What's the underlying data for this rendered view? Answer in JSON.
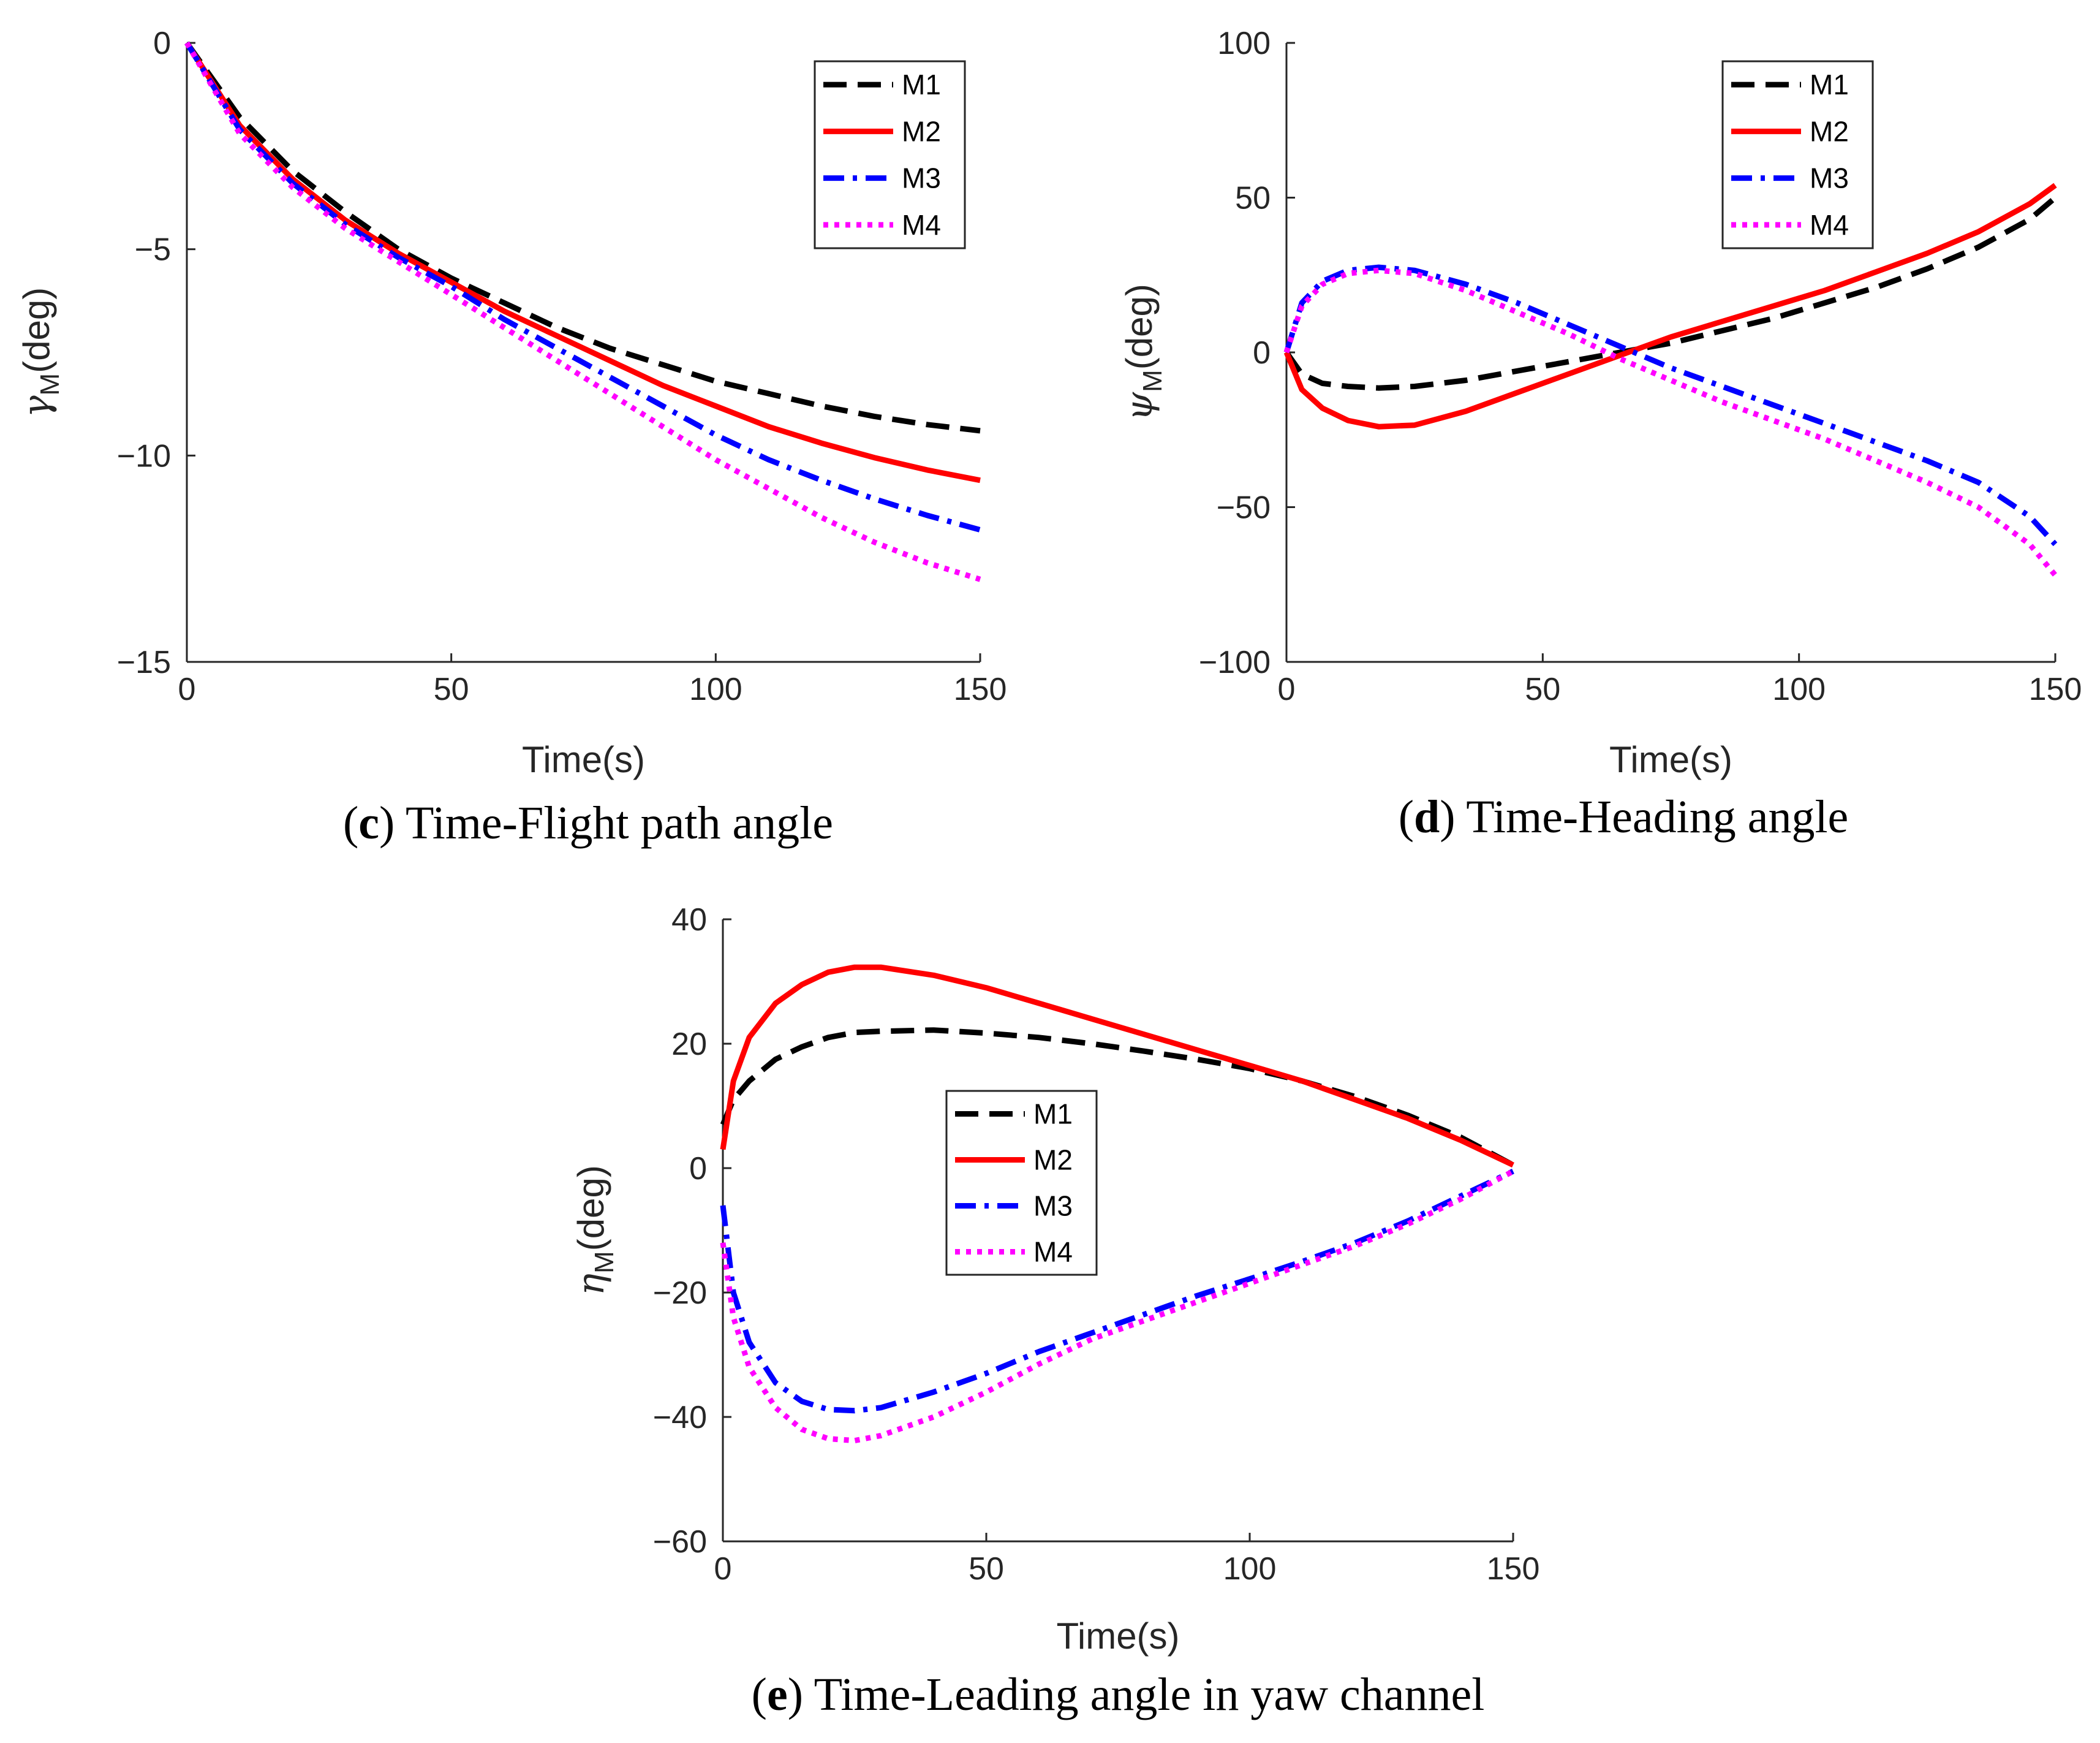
{
  "chart_data": [
    {
      "type": "line",
      "panel": "c",
      "caption_letter": "c",
      "caption_text": "Time-Flight path angle",
      "xlabel": "Time(s)",
      "ylabel_symbol": "γ",
      "ylabel_sub": "M",
      "ylabel_unit": "(deg)",
      "xlim": [
        0,
        150
      ],
      "ylim": [
        -15,
        0
      ],
      "xticks": [
        0,
        50,
        100,
        150
      ],
      "yticks": [
        0,
        -5,
        -10,
        -15
      ],
      "xtick_labels": [
        "0",
        "50",
        "100",
        "150"
      ],
      "ytick_labels": [
        "0",
        "−5",
        "−10",
        "−15"
      ],
      "legend_position": "top-right",
      "x": [
        0,
        10,
        20,
        30,
        40,
        50,
        60,
        70,
        80,
        90,
        100,
        110,
        120,
        130,
        140,
        150
      ],
      "series": [
        {
          "name": "M1",
          "values": [
            0,
            -1.8,
            -3.1,
            -4.1,
            -5.0,
            -5.7,
            -6.3,
            -6.9,
            -7.4,
            -7.8,
            -8.2,
            -8.5,
            -8.8,
            -9.05,
            -9.25,
            -9.4
          ]
        },
        {
          "name": "M2",
          "values": [
            0,
            -2.0,
            -3.3,
            -4.3,
            -5.1,
            -5.8,
            -6.5,
            -7.1,
            -7.7,
            -8.3,
            -8.8,
            -9.3,
            -9.7,
            -10.05,
            -10.35,
            -10.6
          ]
        },
        {
          "name": "M3",
          "values": [
            0,
            -2.1,
            -3.4,
            -4.4,
            -5.2,
            -5.9,
            -6.7,
            -7.4,
            -8.1,
            -8.8,
            -9.5,
            -10.1,
            -10.6,
            -11.05,
            -11.45,
            -11.8
          ]
        },
        {
          "name": "M4",
          "values": [
            0,
            -2.2,
            -3.5,
            -4.5,
            -5.3,
            -6.1,
            -6.9,
            -7.7,
            -8.5,
            -9.3,
            -10.1,
            -10.8,
            -11.5,
            -12.1,
            -12.6,
            -13.0
          ]
        }
      ]
    },
    {
      "type": "line",
      "panel": "d",
      "caption_letter": "d",
      "caption_text": "Time-Heading angle",
      "xlabel": "Time(s)",
      "ylabel_symbol": "ψ",
      "ylabel_sub": "M",
      "ylabel_unit": "(deg)",
      "xlim": [
        0,
        150
      ],
      "ylim": [
        -100,
        100
      ],
      "xticks": [
        0,
        50,
        100,
        150
      ],
      "yticks": [
        100,
        50,
        0,
        -50,
        -100
      ],
      "xtick_labels": [
        "0",
        "50",
        "100",
        "150"
      ],
      "ytick_labels": [
        "100",
        "50",
        "0",
        "−50",
        "−100"
      ],
      "legend_position": "top-right",
      "x": [
        0,
        3,
        7,
        12,
        18,
        25,
        35,
        45,
        55,
        65,
        75,
        85,
        95,
        105,
        115,
        125,
        135,
        145,
        150
      ],
      "series": [
        {
          "name": "M1",
          "values": [
            0,
            -7,
            -10,
            -11,
            -11.5,
            -11,
            -9,
            -6,
            -3,
            0,
            3,
            7,
            11,
            16,
            21,
            27,
            34,
            43,
            50
          ]
        },
        {
          "name": "M2",
          "values": [
            0,
            -12,
            -18,
            -22,
            -24,
            -23.5,
            -19,
            -13,
            -7,
            -1,
            5,
            10,
            15,
            20,
            26,
            32,
            39,
            48,
            54
          ]
        },
        {
          "name": "M3",
          "values": [
            0,
            16,
            23,
            26.5,
            27.5,
            26.5,
            22,
            16,
            9,
            2,
            -5,
            -11,
            -17,
            -23,
            -29,
            -35,
            -42,
            -53,
            -62
          ]
        },
        {
          "name": "M4",
          "values": [
            0,
            15,
            22,
            25.5,
            26.5,
            25.5,
            20,
            13,
            6,
            -2,
            -9,
            -16,
            -22,
            -28,
            -35,
            -42,
            -50,
            -62,
            -72
          ]
        }
      ]
    },
    {
      "type": "line",
      "panel": "e",
      "caption_letter": "e",
      "caption_text": "Time-Leading angle in yaw channel",
      "xlabel": "Time(s)",
      "ylabel_symbol": "η",
      "ylabel_sub": "M",
      "ylabel_unit": "(deg)",
      "xlim": [
        0,
        150
      ],
      "ylim": [
        -60,
        40
      ],
      "xticks": [
        0,
        50,
        100,
        150
      ],
      "yticks": [
        40,
        20,
        0,
        -20,
        -40,
        -60
      ],
      "xtick_labels": [
        "0",
        "50",
        "100",
        "150"
      ],
      "ytick_labels": [
        "40",
        "20",
        "0",
        "−20",
        "−40",
        "−60"
      ],
      "legend_position": "center",
      "x": [
        0,
        2,
        5,
        10,
        15,
        20,
        25,
        30,
        40,
        50,
        60,
        70,
        80,
        90,
        100,
        110,
        120,
        130,
        140,
        150
      ],
      "series": [
        {
          "name": "M1",
          "values": [
            7,
            11,
            14,
            17.5,
            19.5,
            21,
            21.8,
            22,
            22.2,
            21.7,
            21,
            20,
            18.8,
            17.5,
            16,
            14,
            11.5,
            8.5,
            5,
            0.5
          ]
        },
        {
          "name": "M2",
          "values": [
            3,
            14,
            21,
            26.5,
            29.5,
            31.5,
            32.3,
            32.3,
            31,
            29,
            26.5,
            24,
            21.5,
            19,
            16.5,
            14,
            11,
            8,
            4.5,
            0.5
          ]
        },
        {
          "name": "M3",
          "values": [
            -6,
            -20,
            -28,
            -34.5,
            -37.5,
            -38.8,
            -39,
            -38.5,
            -36,
            -33,
            -29.5,
            -26.5,
            -23.5,
            -20.5,
            -17.8,
            -15,
            -12,
            -8.5,
            -4.5,
            -0.5
          ]
        },
        {
          "name": "M4",
          "values": [
            -12,
            -24,
            -32,
            -38.5,
            -42,
            -43.5,
            -43.8,
            -43,
            -40,
            -36,
            -31.5,
            -27.5,
            -24.5,
            -21.5,
            -18.5,
            -15.5,
            -12.5,
            -9,
            -5,
            -0.5
          ]
        }
      ]
    }
  ],
  "legend_styles": [
    {
      "name": "M1",
      "color": "#000000",
      "dash": "dash"
    },
    {
      "name": "M2",
      "color": "#ff0000",
      "dash": "solid"
    },
    {
      "name": "M3",
      "color": "#0000ff",
      "dash": "dashdot"
    },
    {
      "name": "M4",
      "color": "#ff00ff",
      "dash": "dot"
    }
  ]
}
